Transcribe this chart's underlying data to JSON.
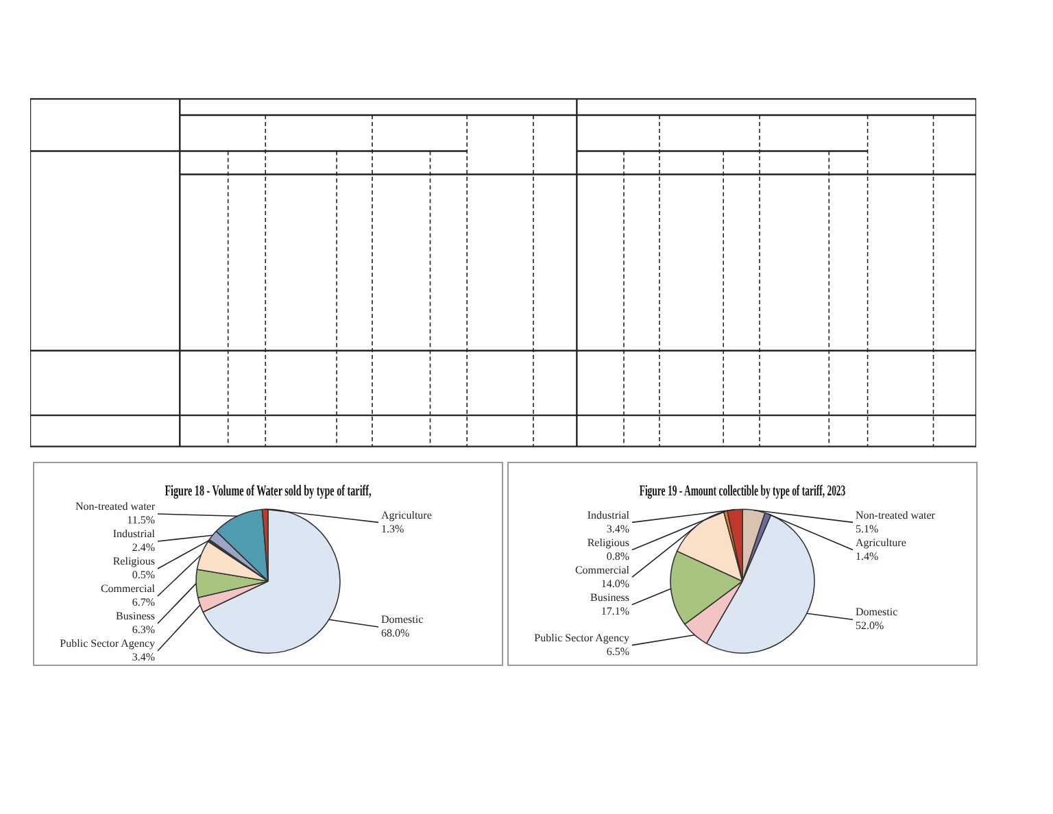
{
  "chart_data": [
    {
      "type": "pie",
      "title": "Figure 18 - Volume of Water sold by type of tariff,",
      "categories": [
        "Domestic",
        "Public Sector Agency",
        "Business",
        "Commercial",
        "Religious",
        "Industrial",
        "Non-treated water",
        "Agriculture"
      ],
      "values": [
        68.0,
        3.4,
        6.3,
        6.7,
        0.5,
        2.4,
        11.5,
        1.3
      ],
      "value_labels": [
        "68.0%",
        "3.4%",
        "6.3%",
        "6.7%",
        "0.5%",
        "2.4%",
        "11.5%",
        "1.3%"
      ],
      "colors": [
        "#dce6f2",
        "#f2c4c4",
        "#a9c47f",
        "#fbe0c8",
        "#404040",
        "#9aa6c4",
        "#4f9bb0",
        "#c0392b"
      ]
    },
    {
      "type": "pie",
      "title": "Figure 19 - Amount collectible by type of tariff, 2023",
      "categories": [
        "Non-treated water",
        "Agriculture",
        "Domestic",
        "Public Sector Agency",
        "Business",
        "Commercial",
        "Religious",
        "Industrial"
      ],
      "values": [
        5.1,
        1.4,
        52.0,
        6.5,
        17.1,
        14.0,
        0.8,
        3.4
      ],
      "value_labels": [
        "5.1%",
        "1.4%",
        "52.0%",
        "6.5%",
        "17.1%",
        "14.0%",
        "0.8%",
        "3.4%"
      ],
      "colors": [
        "#d9c3b0",
        "#6b6a9c",
        "#dce6f2",
        "#f2c4c4",
        "#a9c47f",
        "#fbe0c8",
        "#e67e22",
        "#c0392b"
      ]
    }
  ]
}
